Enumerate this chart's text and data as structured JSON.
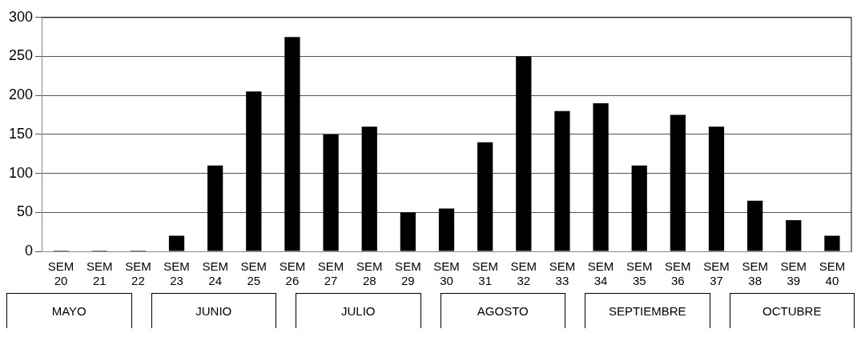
{
  "chart_data": {
    "type": "bar",
    "categories": [
      "SEM 20",
      "SEM 21",
      "SEM 22",
      "SEM 23",
      "SEM 24",
      "SEM 25",
      "SEM 26",
      "SEM 27",
      "SEM 28",
      "SEM 29",
      "SEM 30",
      "SEM 31",
      "SEM 32",
      "SEM 33",
      "SEM 34",
      "SEM 35",
      "SEM 36",
      "SEM 37",
      "SEM 38",
      "SEM 39",
      "SEM 40"
    ],
    "values": [
      1,
      1,
      1,
      20,
      110,
      205,
      275,
      150,
      160,
      50,
      55,
      140,
      250,
      180,
      190,
      110,
      175,
      160,
      65,
      40,
      20
    ],
    "color": "#000000",
    "ylim": [
      0,
      300
    ],
    "yticks": [
      0,
      50,
      100,
      150,
      200,
      250,
      300
    ],
    "grid": "y",
    "legend": false,
    "annotations": [
      "MAYO",
      "JUNIO",
      "JULIO",
      "AGOSTO",
      "SEPTIEMBRE",
      "OCTUBRE"
    ]
  }
}
